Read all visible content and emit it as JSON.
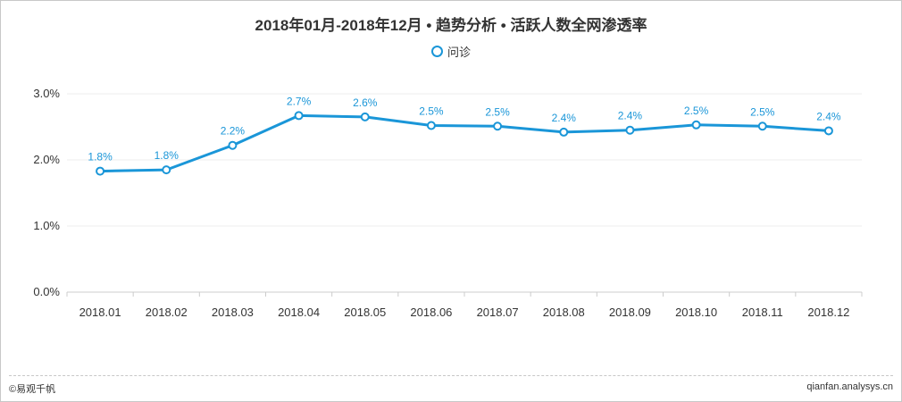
{
  "chart_data": {
    "type": "line",
    "title": "2018年01月-2018年12月 • 趋势分析 • 活跃人数全网渗透率",
    "categories": [
      "2018.01",
      "2018.02",
      "2018.03",
      "2018.04",
      "2018.05",
      "2018.06",
      "2018.07",
      "2018.08",
      "2018.09",
      "2018.10",
      "2018.11",
      "2018.12"
    ],
    "series": [
      {
        "name": "问诊",
        "values": [
          1.83,
          1.85,
          2.22,
          2.67,
          2.65,
          2.52,
          2.51,
          2.42,
          2.45,
          2.53,
          2.51,
          2.44
        ],
        "labels": [
          "1.8%",
          "1.8%",
          "2.2%",
          "2.7%",
          "2.6%",
          "2.5%",
          "2.5%",
          "2.4%",
          "2.4%",
          "2.5%",
          "2.5%",
          "2.4%"
        ],
        "color": "#1a96d8"
      }
    ],
    "y_ticks": [
      "0.0%",
      "1.0%",
      "2.0%",
      "3.0%"
    ],
    "ylim": [
      0,
      3.0
    ],
    "grid": true,
    "legend": "top-center"
  },
  "footer": {
    "copyright": "©易观千帆",
    "site": "qianfan.analysys.cn"
  }
}
